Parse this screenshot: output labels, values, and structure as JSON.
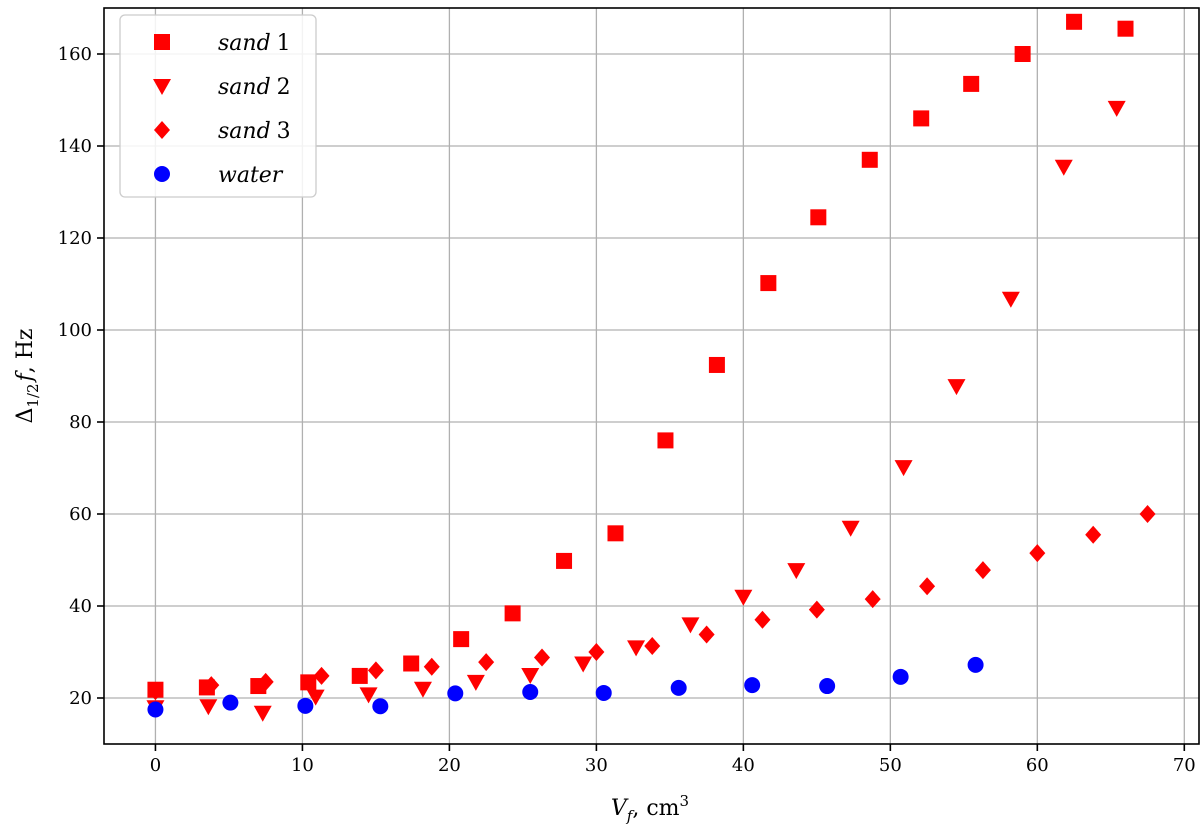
{
  "chart_data": {
    "type": "scatter",
    "xlabel": "V_f, cm³",
    "ylabel": "Δ_{1/2} f, Hz",
    "xlim": [
      -3.5,
      71
    ],
    "ylim": [
      10,
      170
    ],
    "xticks": [
      0,
      10,
      20,
      30,
      40,
      50,
      60,
      70
    ],
    "yticks": [
      20,
      40,
      60,
      80,
      100,
      120,
      140,
      160
    ],
    "grid": true,
    "legend_position": "top-left",
    "series": [
      {
        "name": "sand 1",
        "name_word": "sand",
        "name_num": "1",
        "marker": "square",
        "color": "#ff0000",
        "points": [
          [
            0,
            21.8
          ],
          [
            3.5,
            22.3
          ],
          [
            7,
            22.6
          ],
          [
            10.4,
            23.4
          ],
          [
            13.9,
            24.8
          ],
          [
            17.4,
            27.5
          ],
          [
            20.8,
            32.8
          ],
          [
            24.3,
            38.4
          ],
          [
            27.8,
            49.8
          ],
          [
            31.3,
            55.8
          ],
          [
            34.7,
            76
          ],
          [
            38.2,
            92.4
          ],
          [
            41.7,
            110.2
          ],
          [
            45.1,
            124.5
          ],
          [
            48.6,
            137
          ],
          [
            52.1,
            146
          ],
          [
            55.5,
            153.5
          ],
          [
            59,
            160
          ],
          [
            62.5,
            167
          ],
          [
            66,
            165.5
          ]
        ]
      },
      {
        "name": "sand 2",
        "name_word": "sand",
        "name_num": "2",
        "marker": "triangle-down",
        "color": "#ff0000",
        "points": [
          [
            0,
            18
          ],
          [
            3.6,
            18.2
          ],
          [
            7.3,
            16.8
          ],
          [
            10.9,
            20.3
          ],
          [
            14.5,
            20.8
          ],
          [
            18.2,
            22
          ],
          [
            21.8,
            23.5
          ],
          [
            25.5,
            25
          ],
          [
            29.1,
            27.5
          ],
          [
            32.7,
            31
          ],
          [
            36.4,
            36
          ],
          [
            40,
            42
          ],
          [
            43.6,
            47.8
          ],
          [
            47.3,
            57
          ],
          [
            50.9,
            70.2
          ],
          [
            54.5,
            87.8
          ],
          [
            58.2,
            106.8
          ],
          [
            61.8,
            135.5
          ],
          [
            65.4,
            148.3
          ]
        ]
      },
      {
        "name": "sand 3",
        "name_word": "sand",
        "name_num": "3",
        "marker": "diamond",
        "color": "#ff0000",
        "points": [
          [
            0,
            21.5
          ],
          [
            3.8,
            22.8
          ],
          [
            7.5,
            23.5
          ],
          [
            11.3,
            24.8
          ],
          [
            15,
            26
          ],
          [
            18.8,
            26.8
          ],
          [
            22.5,
            27.8
          ],
          [
            26.3,
            28.8
          ],
          [
            30,
            30
          ],
          [
            33.8,
            31.3
          ],
          [
            37.5,
            33.8
          ],
          [
            41.3,
            37
          ],
          [
            45,
            39.2
          ],
          [
            48.8,
            41.5
          ],
          [
            52.5,
            44.3
          ],
          [
            56.3,
            47.8
          ],
          [
            60,
            51.5
          ],
          [
            63.8,
            55.5
          ],
          [
            67.5,
            60
          ]
        ]
      },
      {
        "name": "water",
        "name_word": "water",
        "name_num": "",
        "marker": "circle",
        "color": "#0000ff",
        "points": [
          [
            0,
            17.5
          ],
          [
            5.1,
            19
          ],
          [
            10.2,
            18.3
          ],
          [
            15.3,
            18.2
          ],
          [
            20.4,
            21
          ],
          [
            25.5,
            21.3
          ],
          [
            30.5,
            21.1
          ],
          [
            35.6,
            22.2
          ],
          [
            40.6,
            22.8
          ],
          [
            45.7,
            22.6
          ],
          [
            50.7,
            24.6
          ],
          [
            55.8,
            27.2
          ]
        ]
      }
    ]
  }
}
